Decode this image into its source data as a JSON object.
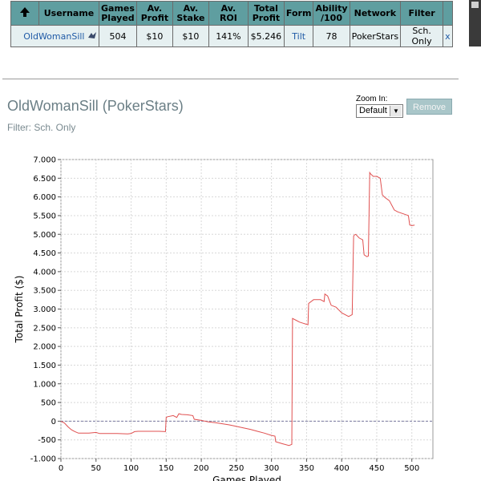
{
  "table": {
    "headers": {
      "username": "Username",
      "games_played_1": "Games",
      "games_played_2": "Played",
      "av_profit_1": "Av.",
      "av_profit_2": "Profit",
      "av_stake_1": "Av.",
      "av_stake_2": "Stake",
      "av_roi": "Av. ROI",
      "total_profit_1": "Total",
      "total_profit_2": "Profit",
      "form": "Form",
      "ability_1": "Ability",
      "ability_2": "/100",
      "network": "Network",
      "filter": "Filter"
    },
    "row": {
      "username": "OldWomanSill",
      "games_played": "504",
      "av_profit": "$10",
      "av_stake": "$10",
      "av_roi": "141%",
      "total_profit": "$5.246",
      "form": "Tilt",
      "ability": "78",
      "network": "PokerStars",
      "filter": "Sch. Only",
      "remove_x": "x"
    }
  },
  "player": {
    "title": "OldWomanSill (PokerStars)",
    "filter": "Filter: Sch. Only"
  },
  "zoom": {
    "label": "Zoom In:",
    "selected": "Default"
  },
  "remove_label": "Remove",
  "icons": {
    "sort": "up-arrow-icon",
    "network": "pokerstars-logo-icon",
    "dropdown": "chevron-down-icon"
  },
  "colors": {
    "header_bg": "#5f9ea0",
    "line": "#e05050",
    "zero_line": "#7a7aa0"
  },
  "chart_data": {
    "type": "line",
    "xlabel": "Games Played",
    "ylabel": "Total Profit ($)",
    "xlim": [
      0,
      530
    ],
    "ylim": [
      -1000,
      7000
    ],
    "xticks": [
      0,
      50,
      100,
      150,
      200,
      250,
      300,
      350,
      400,
      450,
      500
    ],
    "xtick_labels": [
      "0",
      "50",
      "100",
      "150",
      "200",
      "250",
      "300",
      "350",
      "400",
      "450",
      "500"
    ],
    "yticks": [
      -1000,
      -500,
      0,
      500,
      1000,
      1500,
      2000,
      2500,
      3000,
      3500,
      4000,
      4500,
      5000,
      5500,
      6000,
      6500,
      7000
    ],
    "ytick_labels": [
      "-1.000",
      "-500",
      "0",
      "500",
      "1.000",
      "1.500",
      "2.000",
      "2.500",
      "3.000",
      "3.500",
      "4.000",
      "4.500",
      "5.000",
      "5.500",
      "6.000",
      "6.500",
      "7.000"
    ],
    "grid": true,
    "series": [
      {
        "x": [
          0,
          5,
          10,
          15,
          20,
          25,
          30,
          40,
          50,
          55,
          60,
          75,
          80,
          95,
          100,
          105,
          110,
          130,
          140,
          149,
          150,
          152,
          160,
          165,
          168,
          172,
          180,
          188,
          190,
          200,
          210,
          220,
          230,
          240,
          250,
          260,
          270,
          280,
          290,
          300,
          305,
          306,
          315,
          325,
          329,
          330,
          335,
          340,
          345,
          352,
          353,
          360,
          370,
          375,
          376,
          380,
          385,
          392,
          400,
          410,
          415,
          417,
          418,
          420,
          425,
          430,
          432,
          436,
          438,
          440,
          441,
          445,
          450,
          455,
          458,
          462,
          468,
          475,
          480,
          495,
          497,
          500,
          504
        ],
        "y": [
          0,
          -50,
          -150,
          -230,
          -280,
          -320,
          -320,
          -320,
          -300,
          -330,
          -330,
          -330,
          -330,
          -340,
          -330,
          -280,
          -270,
          -270,
          -270,
          -280,
          100,
          120,
          150,
          100,
          200,
          180,
          170,
          150,
          50,
          20,
          -20,
          -40,
          -70,
          -100,
          -140,
          -180,
          -220,
          -270,
          -320,
          -380,
          -400,
          -550,
          -600,
          -650,
          -620,
          2750,
          2700,
          2650,
          2620,
          2580,
          3150,
          3250,
          3250,
          3200,
          3400,
          3350,
          3100,
          3050,
          2900,
          2800,
          2850,
          4950,
          4980,
          5000,
          4900,
          4850,
          4450,
          4400,
          4420,
          6650,
          6620,
          6550,
          6550,
          6500,
          6050,
          5980,
          5900,
          5650,
          5600,
          5500,
          5250,
          5230,
          5246
        ]
      }
    ]
  }
}
